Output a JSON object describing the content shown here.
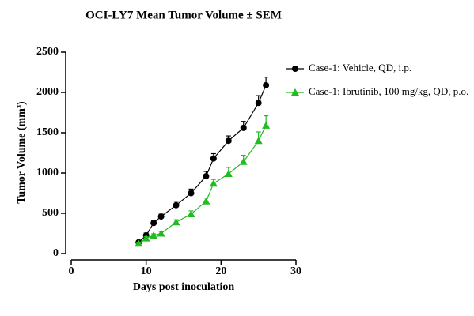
{
  "chart_data": {
    "type": "line",
    "title": "OCI-LY7 Mean Tumor Volume ± SEM",
    "x_label": "Days post inoculation",
    "y_label": "Tumor Volume (mm³)",
    "xlim": [
      0,
      30
    ],
    "xticks": [
      0,
      10,
      20,
      30
    ],
    "ylim": [
      0,
      2500
    ],
    "yticks": [
      0,
      500,
      1000,
      1500,
      2000,
      2500
    ],
    "legend": "right",
    "series": [
      {
        "name": "Case-1: Vehicle, QD, i.p.",
        "color": "#000000",
        "marker": "circle",
        "x": [
          9,
          10,
          11,
          12,
          14,
          16,
          18,
          19,
          21,
          23,
          25,
          26
        ],
        "values": [
          140,
          225,
          380,
          460,
          600,
          750,
          960,
          1180,
          1400,
          1560,
          1870,
          2090
        ],
        "errors": [
          20,
          30,
          30,
          30,
          50,
          50,
          60,
          60,
          60,
          80,
          90,
          100
        ]
      },
      {
        "name": "Case-1: Ibrutinib, 100 mg/kg, QD, p.o.",
        "color": "#22bb22",
        "marker": "triangle",
        "x": [
          9,
          10,
          11,
          12,
          14,
          16,
          18,
          19,
          21,
          23,
          25,
          26
        ],
        "values": [
          125,
          190,
          225,
          250,
          390,
          490,
          650,
          870,
          990,
          1140,
          1400,
          1590
        ],
        "errors": [
          15,
          20,
          20,
          25,
          30,
          40,
          40,
          50,
          80,
          80,
          110,
          120
        ]
      }
    ]
  }
}
